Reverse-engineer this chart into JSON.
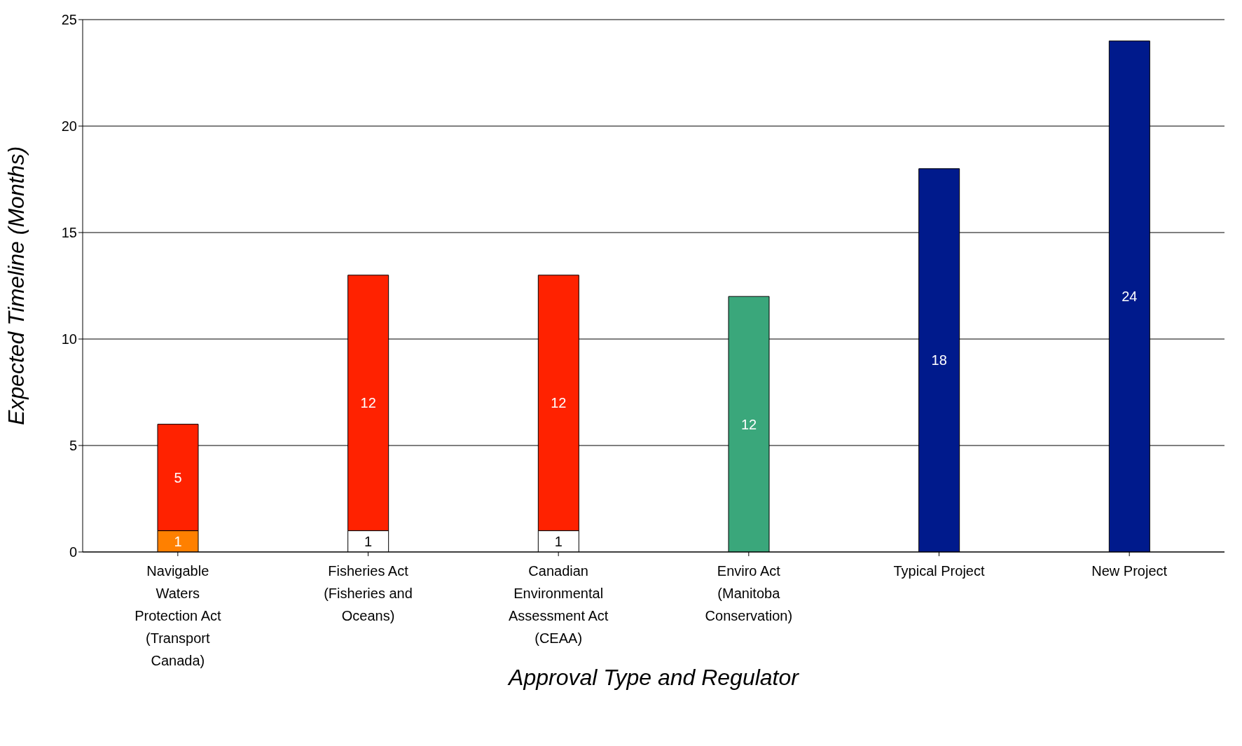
{
  "chart_data": {
    "type": "bar",
    "stacked": true,
    "xlabel": "Approval Type and Regulator",
    "ylabel": "Expected Timeline (Months)",
    "categories": [
      "Navigable Waters Protection Act (Transport Canada)",
      "Fisheries Act (Fisheries and Oceans)",
      "Canadian Environmental Assessment Act (CEAA)",
      "Enviro Act (Manitoba Conservation)",
      "Typical Project",
      "New Project"
    ],
    "series": [
      {
        "colors": [
          "#ff8000",
          "#ffffff",
          "#ffffff",
          null,
          null,
          null
        ],
        "values": [
          1,
          1,
          1,
          null,
          null,
          null
        ]
      },
      {
        "colors": [
          "#ff2200",
          "#ff2200",
          "#ff2200",
          "#3aa77b",
          "#001a8c",
          "#001a8c"
        ],
        "values": [
          5,
          12,
          12,
          12,
          18,
          24
        ]
      }
    ],
    "ylim": [
      0,
      25
    ],
    "yticks": [
      0,
      5,
      10,
      15,
      20,
      25
    ],
    "grid": "y",
    "legend": false,
    "data_labels": true
  }
}
